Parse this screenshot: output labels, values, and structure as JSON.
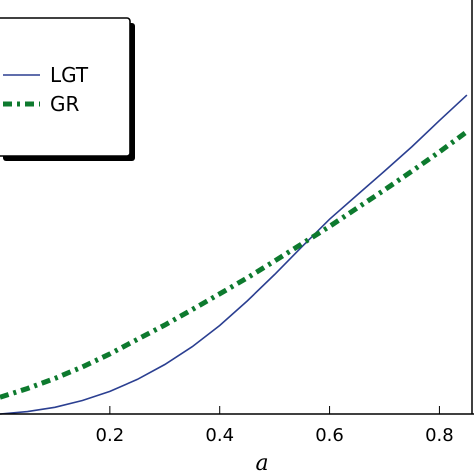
{
  "chart_data": {
    "type": "line",
    "xlabel": "a",
    "ylabel": "",
    "title": "",
    "xlim": [
      0.0,
      0.85
    ],
    "x_ticks": [
      "0.2",
      "0.4",
      "0.6",
      "0.8"
    ],
    "x_tick_values": [
      0.2,
      0.4,
      0.6,
      0.8
    ],
    "grid": false,
    "legend_position": "top-left",
    "series": [
      {
        "name": "LGT",
        "color": "#2b3f91",
        "style": "solid",
        "x": [
          0.0,
          0.05,
          0.1,
          0.15,
          0.2,
          0.25,
          0.3,
          0.35,
          0.4,
          0.45,
          0.5,
          0.55,
          0.6,
          0.65,
          0.7,
          0.75,
          0.8,
          0.85
        ],
        "y": [
          0.0,
          0.005,
          0.014,
          0.028,
          0.047,
          0.072,
          0.103,
          0.14,
          0.184,
          0.235,
          0.29,
          0.348,
          0.405,
          0.455,
          0.505,
          0.556,
          0.61,
          0.663
        ]
      },
      {
        "name": "GR",
        "color": "#0d7a2e",
        "style": "dash-dot",
        "x": [
          0.0,
          0.05,
          0.1,
          0.15,
          0.2,
          0.25,
          0.3,
          0.35,
          0.4,
          0.45,
          0.5,
          0.55,
          0.6,
          0.65,
          0.7,
          0.75,
          0.8,
          0.85
        ],
        "y": [
          0.035,
          0.053,
          0.074,
          0.098,
          0.125,
          0.155,
          0.185,
          0.217,
          0.25,
          0.283,
          0.318,
          0.354,
          0.39,
          0.428,
          0.466,
          0.505,
          0.545,
          0.587
        ]
      }
    ]
  }
}
